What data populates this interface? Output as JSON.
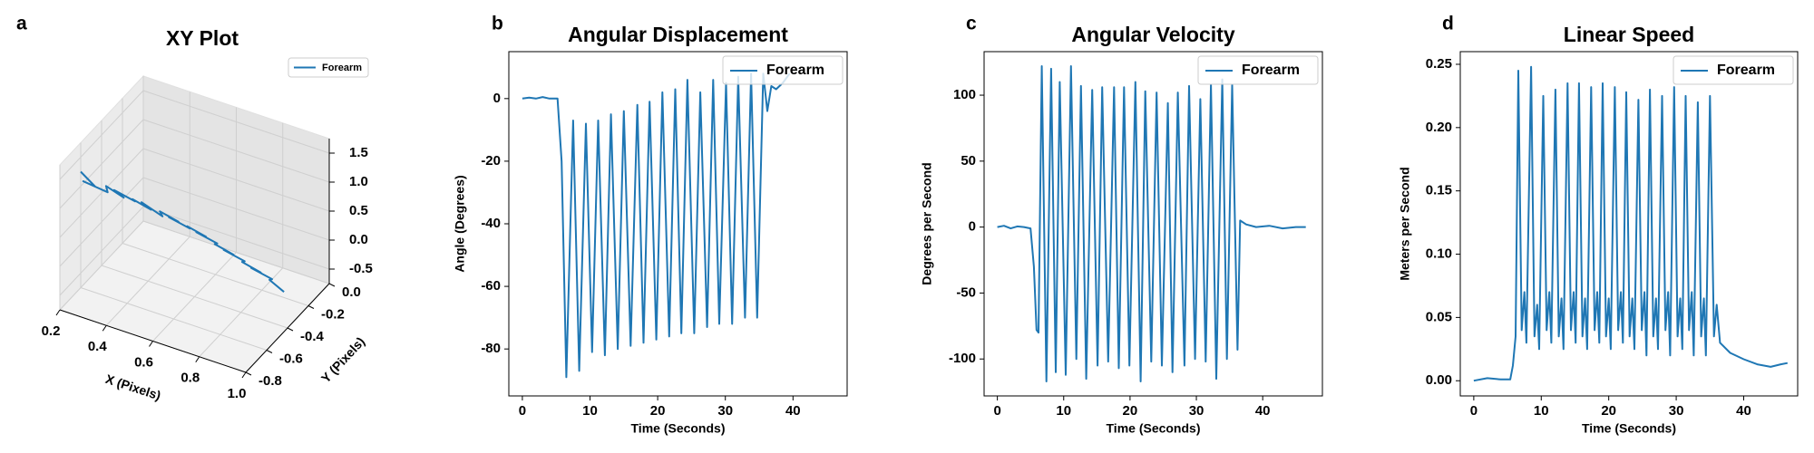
{
  "chart_data": [
    {
      "type": "line3d",
      "panel_label": "a",
      "title": "XY Plot",
      "xlabel": "X (Pixels)",
      "ylabel": "Y (Pixels)",
      "series": [
        {
          "name": "Forearm",
          "color": "#1f77b4",
          "x": [
            0.2,
            0.24,
            0.22,
            0.28,
            0.3,
            0.34,
            0.33,
            0.38,
            0.4,
            0.44,
            0.43,
            0.48,
            0.5,
            0.54,
            0.53,
            0.58,
            0.6,
            0.64,
            0.63,
            0.68,
            0.7,
            0.74,
            0.73,
            0.78,
            0.8,
            0.84,
            0.83,
            0.88,
            0.9,
            0.94
          ],
          "y": [
            -0.6,
            -0.55,
            -0.62,
            -0.52,
            -0.58,
            -0.5,
            -0.57,
            -0.48,
            -0.55,
            -0.46,
            -0.53,
            -0.44,
            -0.51,
            -0.42,
            -0.49,
            -0.4,
            -0.47,
            -0.38,
            -0.45,
            -0.36,
            -0.43,
            -0.34,
            -0.41,
            -0.32,
            -0.39,
            -0.3,
            -0.37,
            -0.28,
            -0.35,
            -0.3
          ],
          "z": [
            1.25,
            0.95,
            1.15,
            0.85,
            1.1,
            0.8,
            1.05,
            0.75,
            0.95,
            0.65,
            0.9,
            0.55,
            0.8,
            0.5,
            0.7,
            0.4,
            0.6,
            0.3,
            0.5,
            0.2,
            0.35,
            0.05,
            0.25,
            -0.05,
            0.1,
            -0.2,
            0.0,
            -0.3,
            -0.15,
            -0.4
          ]
        }
      ],
      "xlim": [
        0.2,
        1.0
      ],
      "ylim": [
        -0.8,
        0
      ],
      "zlim": [
        -0.75,
        1.75
      ],
      "xticks": [
        0.2,
        0.4,
        0.6,
        0.8,
        {
          "value": 1,
          "label": "1.0"
        }
      ],
      "yticks": [
        -0.8,
        -0.6,
        -0.4,
        -0.2,
        {
          "value": 0,
          "label": "0.0"
        }
      ],
      "zticks": [
        -0.5,
        {
          "value": 0,
          "label": "0.0"
        },
        0.5,
        {
          "value": 1,
          "label": "1.0"
        },
        1.5
      ],
      "grid": true,
      "legend": "upper right"
    },
    {
      "type": "line",
      "panel_label": "b",
      "title": "Angular Displacement",
      "xlabel": "Time (Seconds)",
      "ylabel": "Angle (Degrees)",
      "x": [
        0,
        1,
        2,
        3,
        4,
        5.2,
        5.8,
        6.5,
        7.5,
        8.4,
        9.4,
        10.3,
        11.2,
        12.2,
        13.1,
        14.1,
        15,
        16,
        17,
        17.9,
        18.8,
        19.8,
        20.7,
        21.7,
        22.6,
        23.5,
        24.4,
        25.4,
        26.3,
        27.3,
        28.2,
        29.1,
        30.1,
        31,
        31.9,
        32.9,
        33.8,
        34.7,
        35.6,
        36.2,
        36.8,
        37.5,
        38.5,
        39.5
      ],
      "series": [
        {
          "name": "Forearm",
          "color": "#1f77b4",
          "values": [
            0,
            0.3,
            0,
            0.5,
            0,
            0,
            -20,
            -89,
            -7,
            -87,
            -8,
            -81,
            -7,
            -82,
            -5,
            -80,
            -4,
            -79,
            -2,
            -78,
            -1,
            -77,
            2,
            -76,
            3,
            -75,
            6,
            -75,
            2,
            -73,
            6,
            -72,
            5,
            -72,
            7,
            -70,
            8,
            -70,
            8,
            -4,
            4,
            3,
            5,
            8
          ]
        }
      ],
      "xlim": [
        -2,
        48
      ],
      "ylim": [
        -95,
        15
      ],
      "xticks": [
        0,
        10,
        20,
        30,
        40
      ],
      "yticks": [
        -80,
        -60,
        -40,
        -20,
        0
      ],
      "legend": "upper right"
    },
    {
      "type": "line",
      "panel_label": "c",
      "title": "Angular Velocity",
      "xlabel": "Time (Seconds)",
      "ylabel": "Degrees per Second",
      "x": [
        0,
        1,
        2,
        3,
        4,
        5,
        5.5,
        5.9,
        6.2,
        6.7,
        7.4,
        8.1,
        8.8,
        9.4,
        10.3,
        11.1,
        11.9,
        12.6,
        13.4,
        14.3,
        15.1,
        15.8,
        16.7,
        17.6,
        18.3,
        19.1,
        19.9,
        20.8,
        21.6,
        22.3,
        23.2,
        24,
        24.8,
        25.7,
        26.4,
        27.2,
        28.2,
        28.9,
        29.8,
        30.6,
        31.4,
        32.2,
        33,
        33.9,
        34.6,
        35.4,
        36.2,
        36.6,
        37.5,
        39,
        41,
        43,
        45,
        46.5
      ],
      "series": [
        {
          "name": "Forearm",
          "color": "#1f77b4",
          "values": [
            0,
            1,
            -1,
            0.5,
            0,
            -1,
            -30,
            -78,
            -80,
            122,
            -117,
            120,
            -110,
            110,
            -112,
            122,
            -100,
            107,
            -115,
            104,
            -105,
            106,
            -102,
            106,
            -107,
            106,
            -105,
            110,
            -117,
            103,
            -102,
            102,
            -105,
            94,
            -110,
            102,
            -105,
            107,
            -100,
            97,
            -102,
            108,
            -115,
            112,
            -100,
            108,
            -93,
            5,
            2,
            0,
            1,
            -1,
            0,
            0
          ]
        }
      ],
      "xlim": [
        -2,
        49
      ],
      "ylim": [
        -128,
        133
      ],
      "xticks": [
        0,
        10,
        20,
        30,
        40
      ],
      "yticks": [
        -100,
        -50,
        0,
        50,
        100
      ],
      "legend": "upper right"
    },
    {
      "type": "line",
      "panel_label": "d",
      "title": "Linear Speed",
      "xlabel": "Time (Seconds)",
      "ylabel": "Meters per Second",
      "x": [
        0,
        2,
        4,
        5.4,
        5.8,
        6.2,
        6.6,
        7.1,
        7.5,
        7.8,
        8.5,
        9.0,
        9.4,
        9.7,
        10.3,
        10.8,
        11.2,
        11.5,
        12.1,
        12.6,
        13.0,
        13.3,
        13.9,
        14.4,
        14.8,
        15.1,
        15.6,
        16.1,
        16.5,
        16.8,
        17.4,
        17.9,
        18.3,
        18.6,
        19.1,
        19.6,
        20.0,
        20.3,
        20.9,
        21.4,
        21.8,
        22.1,
        22.6,
        23.1,
        23.5,
        23.8,
        24.4,
        24.9,
        25.3,
        25.6,
        26.1,
        26.6,
        27.0,
        27.3,
        27.9,
        28.4,
        28.8,
        29.1,
        29.7,
        30.2,
        30.6,
        30.9,
        31.4,
        31.9,
        32.3,
        32.6,
        33.2,
        33.7,
        34.1,
        34.4,
        35.0,
        35.6,
        36.0,
        36.5,
        38,
        40,
        42,
        44,
        45.5,
        46.5
      ],
      "series": [
        {
          "name": "Forearm",
          "color": "#1f77b4",
          "values": [
            0,
            0.002,
            0.001,
            0.001,
            0.012,
            0.035,
            0.245,
            0.04,
            0.07,
            0.03,
            0.248,
            0.035,
            0.06,
            0.025,
            0.225,
            0.04,
            0.07,
            0.03,
            0.23,
            0.035,
            0.065,
            0.025,
            0.235,
            0.04,
            0.07,
            0.03,
            0.235,
            0.035,
            0.065,
            0.025,
            0.232,
            0.04,
            0.07,
            0.03,
            0.235,
            0.035,
            0.065,
            0.025,
            0.232,
            0.04,
            0.07,
            0.03,
            0.228,
            0.035,
            0.065,
            0.025,
            0.222,
            0.04,
            0.07,
            0.02,
            0.23,
            0.035,
            0.065,
            0.025,
            0.225,
            0.04,
            0.07,
            0.02,
            0.232,
            0.035,
            0.065,
            0.025,
            0.225,
            0.04,
            0.07,
            0.02,
            0.22,
            0.035,
            0.065,
            0.02,
            0.225,
            0.035,
            0.06,
            0.03,
            0.022,
            0.017,
            0.013,
            0.011,
            0.013,
            0.014
          ]
        }
      ],
      "xlim": [
        -2,
        48
      ],
      "ylim": [
        -0.012,
        0.26
      ],
      "xticks": [
        0,
        10,
        20,
        30,
        40
      ],
      "yticks": [
        {
          "value": 0,
          "label": "0.00"
        },
        0.05,
        {
          "value": 0.1,
          "label": "0.10"
        },
        0.15,
        {
          "value": 0.2,
          "label": "0.20"
        },
        0.25
      ],
      "legend": "upper right"
    }
  ]
}
